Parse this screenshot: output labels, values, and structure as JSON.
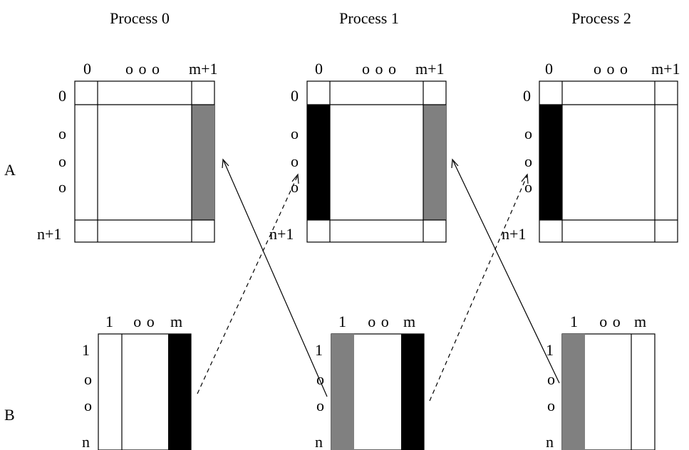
{
  "processes": [
    {
      "title": "Process 0"
    },
    {
      "title": "Process 1"
    },
    {
      "title": "Process 2"
    }
  ],
  "row_labels": {
    "a": "A",
    "b": "B"
  },
  "matrix_a": {
    "col_first": "0",
    "col_dots": "o o o",
    "col_last": "m+1",
    "row_first": "0",
    "row_dot": "o",
    "row_last": "n+1"
  },
  "matrix_b": {
    "col_first": "1",
    "col_dots": "o o",
    "col_last": "m",
    "row_first": "1",
    "row_dot": "o",
    "row_last": "n"
  },
  "colors": {
    "black": "#000000",
    "gray": "#808080",
    "white": "#ffffff"
  }
}
